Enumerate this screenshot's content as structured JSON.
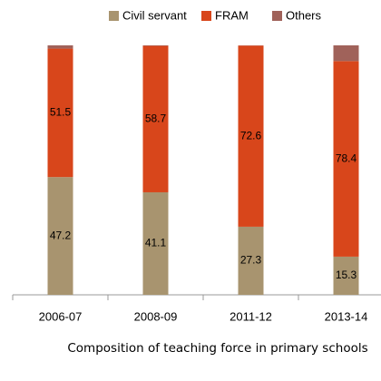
{
  "chart_data": {
    "type": "stacked_bar",
    "title": "Composition of teaching force in primary schools",
    "categories": [
      "2006-07",
      "2008-09",
      "2011-12",
      "2013-14"
    ],
    "series": [
      {
        "name": "Civil servant",
        "color": "#a8946f",
        "values": [
          47.2,
          41.1,
          27.3,
          15.3
        ]
      },
      {
        "name": "FRAM",
        "color": "#d8461b",
        "values": [
          51.5,
          58.7,
          72.6,
          78.4
        ]
      },
      {
        "name": "Others",
        "color": "#a0625a",
        "values": [
          1.3,
          0.2,
          0.1,
          6.3
        ]
      }
    ],
    "data_labels_series": [
      0,
      1
    ],
    "ylim": [
      0,
      100
    ],
    "legend": "top"
  }
}
